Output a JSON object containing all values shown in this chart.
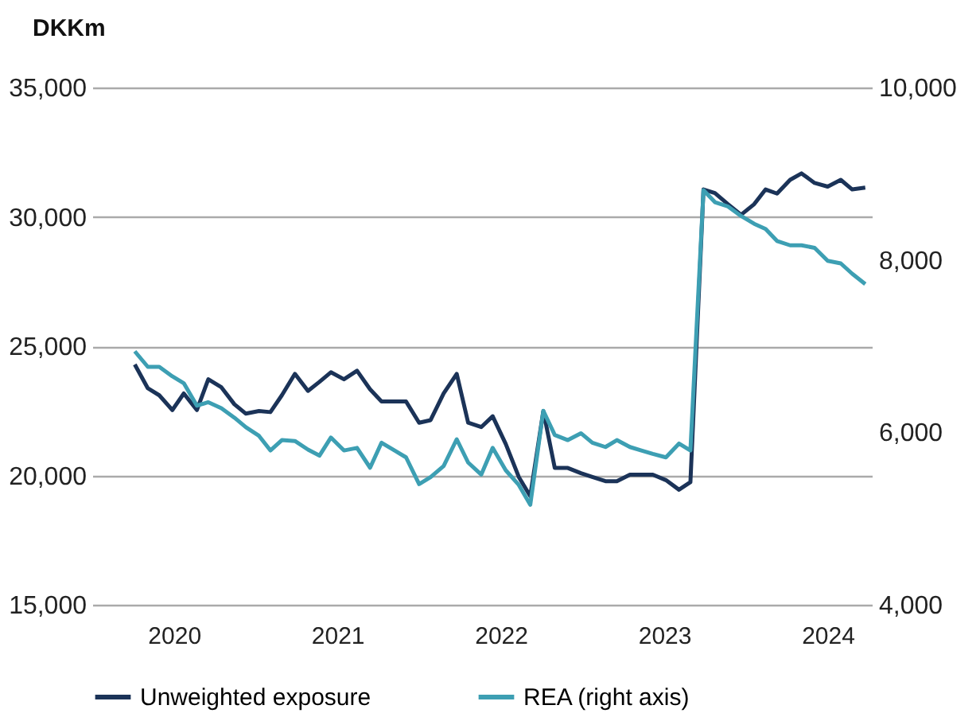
{
  "chart_data": {
    "type": "line",
    "ylabel": "DKKm",
    "x": [
      2019.76,
      2019.84,
      2019.91,
      2019.99,
      2020.06,
      2020.14,
      2020.21,
      2020.29,
      2020.37,
      2020.44,
      2020.52,
      2020.59,
      2020.66,
      2020.74,
      2020.82,
      2020.89,
      2020.96,
      2021.04,
      2021.12,
      2021.2,
      2021.27,
      2021.35,
      2021.42,
      2021.5,
      2021.57,
      2021.65,
      2021.73,
      2021.8,
      2021.88,
      2021.95,
      2022.03,
      2022.11,
      2022.18,
      2022.26,
      2022.33,
      2022.41,
      2022.49,
      2022.56,
      2022.64,
      2022.71,
      2022.79,
      2022.86,
      2022.93,
      2023.01,
      2023.09,
      2023.16,
      2023.24,
      2023.31,
      2023.39,
      2023.47,
      2023.55,
      2023.62,
      2023.69,
      2023.77,
      2023.84,
      2023.92,
      2024.0,
      2024.08,
      2024.15,
      2024.23
    ],
    "series": [
      {
        "name": "Unweighted exposure",
        "color": "#1b3358",
        "values": [
          24290,
          23370,
          23100,
          22530,
          23170,
          22530,
          23720,
          23410,
          22750,
          22390,
          22490,
          22450,
          23100,
          23930,
          23270,
          23620,
          23990,
          23720,
          24050,
          23330,
          22860,
          22860,
          22860,
          22040,
          22140,
          23170,
          23930,
          22040,
          21870,
          22290,
          21220,
          19940,
          19200,
          22490,
          20290,
          20290,
          20090,
          19940,
          19780,
          19780,
          20030,
          20030,
          20030,
          19820,
          19450,
          19740,
          31060,
          30920,
          30490,
          30080,
          30490,
          31060,
          30900,
          31430,
          31680,
          31310,
          31170,
          31430,
          31060,
          31130
        ]
      },
      {
        "name": "REA (right axis)",
        "color": "#3d9fb3",
        "axis": "y2",
        "values": [
          6940,
          6760,
          6760,
          6650,
          6570,
          6310,
          6350,
          6280,
          6170,
          6060,
          5960,
          5790,
          5910,
          5900,
          5800,
          5730,
          5940,
          5790,
          5820,
          5590,
          5880,
          5790,
          5710,
          5400,
          5480,
          5610,
          5920,
          5650,
          5510,
          5820,
          5560,
          5390,
          5160,
          6250,
          5970,
          5910,
          5990,
          5880,
          5830,
          5910,
          5830,
          5790,
          5750,
          5710,
          5870,
          5790,
          8810,
          8670,
          8620,
          8510,
          8420,
          8360,
          8220,
          8170,
          8170,
          8140,
          7990,
          7960,
          7840,
          7720
        ]
      }
    ],
    "xlim": [
      2019.5,
      2024.27
    ],
    "xticks": [
      2020,
      2021,
      2022,
      2023,
      2024
    ],
    "ylim": [
      15000,
      35000
    ],
    "yticks": [
      {
        "value": 15000,
        "label": "15,000"
      },
      {
        "value": 20000,
        "label": "20,000"
      },
      {
        "value": 25000,
        "label": "25,000"
      },
      {
        "value": 30000,
        "label": "30,000"
      },
      {
        "value": 35000,
        "label": "35,000"
      }
    ],
    "y2lim": [
      4000,
      10000
    ],
    "y2ticks": [
      {
        "value": 4000,
        "label": "4,000"
      },
      {
        "value": 6000,
        "label": "6,000"
      },
      {
        "value": 8000,
        "label": "8,000"
      },
      {
        "value": 10000,
        "label": "10,000"
      }
    ],
    "grid": "y",
    "legend": "bottom",
    "line_style": "solid",
    "marker": "none"
  }
}
